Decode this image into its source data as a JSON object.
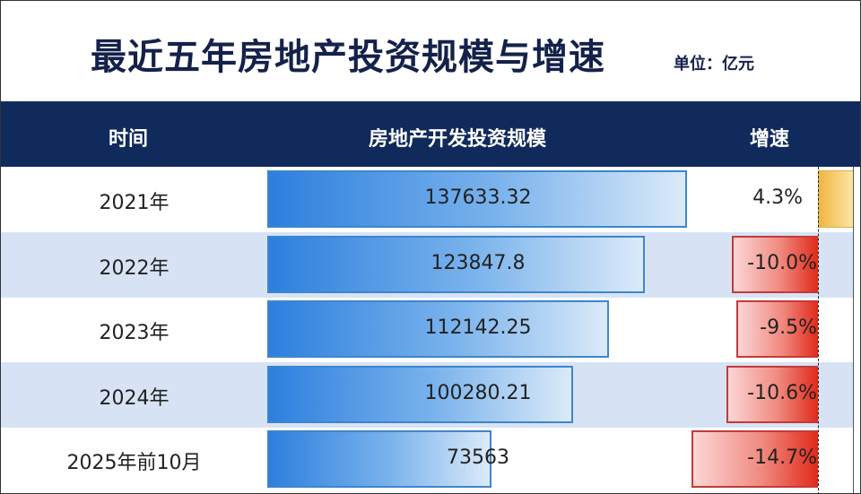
{
  "title": "最近五年房地产投资规模与增速",
  "unit": "单位：亿元",
  "headers": {
    "time": "时间",
    "scale": "房地产开发投资规模",
    "growth": "增速"
  },
  "colors": {
    "header": "#112a5c",
    "bar": "#2d7fde",
    "negative": "#e02a1a",
    "positive": "#f0b640",
    "row_alt": "#d7e3f4"
  },
  "chart_data": {
    "type": "table",
    "categories": [
      "2021年",
      "2022年",
      "2023年",
      "2024年",
      "2025年前10月"
    ],
    "series": [
      {
        "name": "房地产开发投资规模",
        "values": [
          137633.32,
          123847.8,
          112142.25,
          100280.21,
          73563
        ],
        "labels": [
          "137633.32",
          "123847.8",
          "112142.25",
          "100280.21",
          "73563"
        ]
      },
      {
        "name": "增速",
        "values": [
          4.3,
          -10.0,
          -9.5,
          -10.6,
          -14.7
        ],
        "labels": [
          "4.3%",
          "-10.0%",
          "-9.5%",
          "-10.6%",
          "-14.7%"
        ]
      }
    ]
  }
}
